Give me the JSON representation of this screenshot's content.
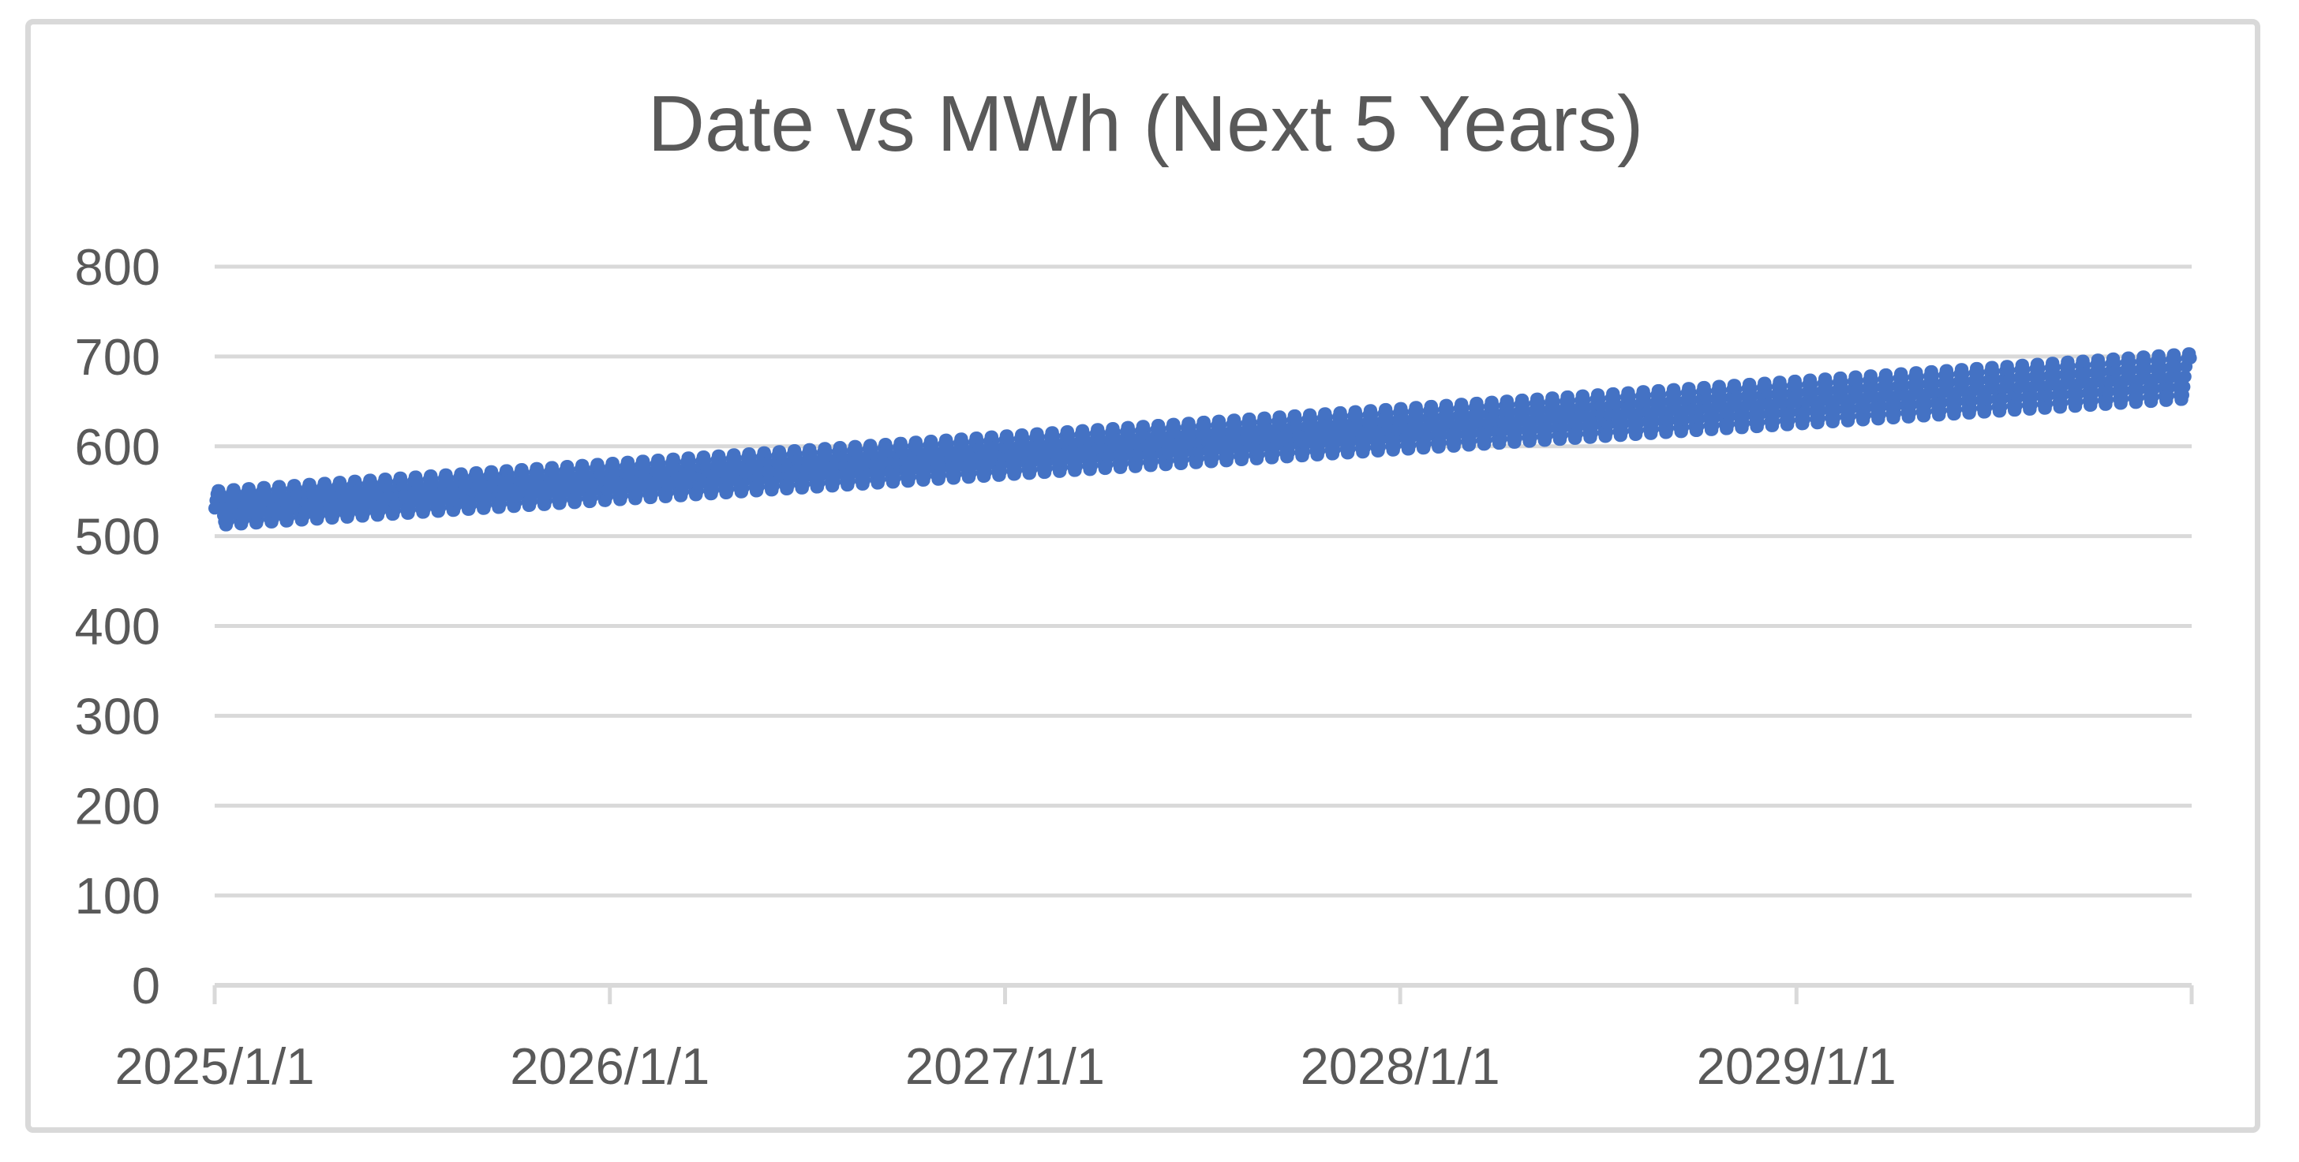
{
  "chart": {
    "title": "Date vs MWh (Next 5 Years)"
  },
  "chart_data": {
    "type": "scatter",
    "title": "Date vs MWh (Next 5 Years)",
    "xlabel": "",
    "ylabel": "",
    "x_tick_labels": [
      "2025/1/1",
      "2026/1/1",
      "2027/1/1",
      "2028/1/1",
      "2029/1/1"
    ],
    "x_tick_days": [
      0,
      365,
      730,
      1095,
      1461
    ],
    "x_axis_start_date": "2025/1/1",
    "x_axis_end_day": 1826,
    "y_ticks": [
      0,
      100,
      200,
      300,
      400,
      500,
      600,
      700,
      800
    ],
    "ylim": [
      0,
      800
    ],
    "grid": true,
    "legend": false,
    "marker_color": "#4472C4",
    "gridline_color": "#d9d9d9",
    "axis_line_color": "#d9d9d9",
    "axis_text_color": "#595959",
    "title_color": "#595959",
    "series": [
      {
        "name": "MWh",
        "sampling": "daily",
        "num_points": 1826,
        "trend_start_value": 531,
        "trend_end_value": 678,
        "oscillation_amplitude_start": 20,
        "oscillation_amplitude_end": 26,
        "oscillation_period_days": 14,
        "envelope_samples": {
          "dates": [
            "2025/1/1",
            "2026/1/1",
            "2027/1/1",
            "2028/1/1",
            "2029/1/1",
            "2029/12/31"
          ],
          "low": [
            504,
            533,
            560,
            589,
            617,
            645
          ],
          "high": [
            558,
            588,
            619,
            650,
            680,
            711
          ]
        }
      }
    ]
  }
}
